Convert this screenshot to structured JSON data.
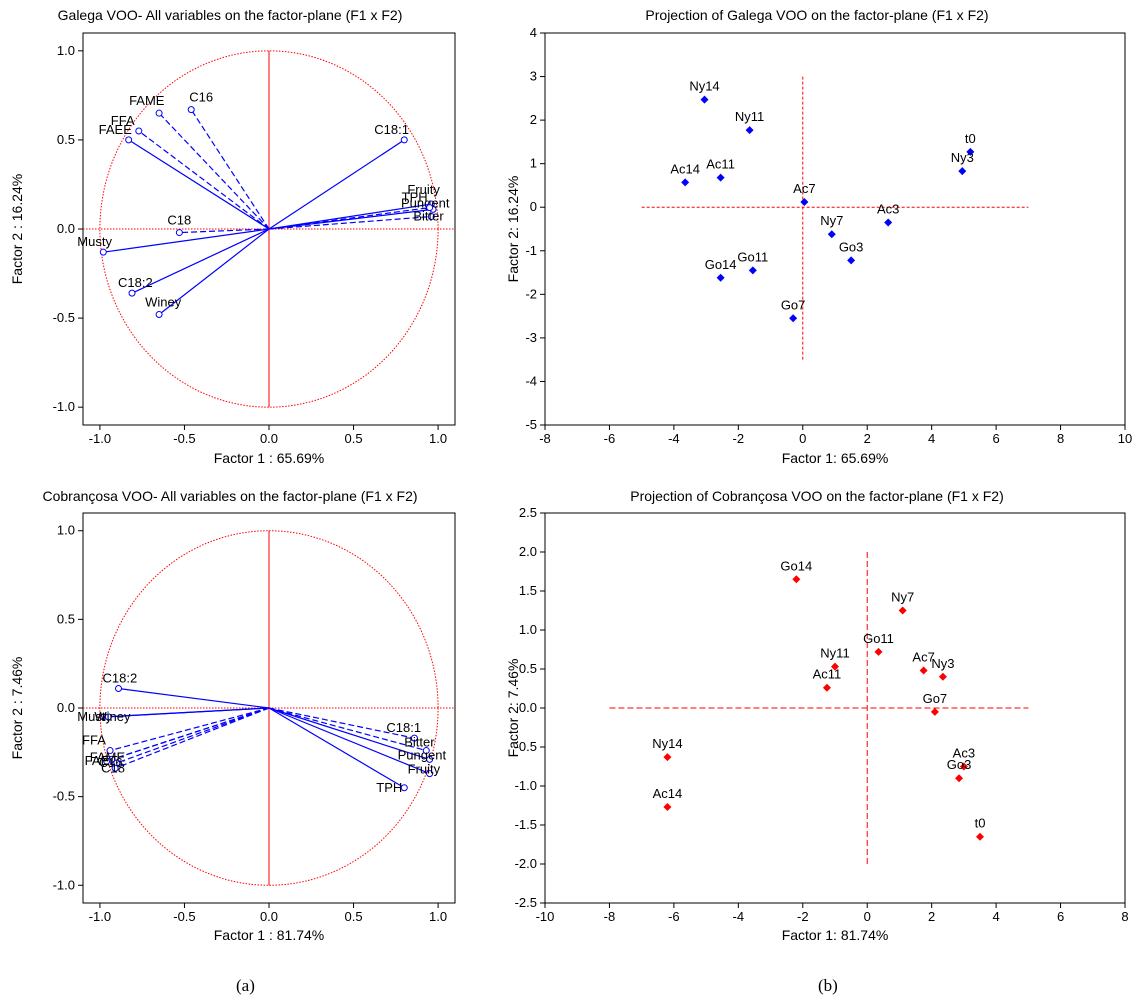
{
  "panel_labels": [
    "(a)",
    "(b)"
  ],
  "colors": {
    "blue": "#0000ff",
    "red": "#ff0000",
    "circle": "#ff0000",
    "axis": "#000000"
  },
  "chart_data": [
    {
      "type": "scatter",
      "subtype": "correlation-circle",
      "title": "Galega VOO- All variables on the factor-plane (F1 x F2)",
      "xlabel": "Factor 1 : 65.69%",
      "ylabel": "Factor 2 : 16.24%",
      "xlim": [
        -1.1,
        1.1
      ],
      "ylim": [
        -1.1,
        1.1
      ],
      "xticks": [
        "-1.0",
        "-0.5",
        "0.0",
        "0.5",
        "1.0"
      ],
      "yticks": [
        "-1.0",
        "-0.5",
        "0.0",
        "0.5",
        "1.0"
      ],
      "color": "#0000ff",
      "points": [
        {
          "label": "FAME",
          "x": -0.65,
          "y": 0.65,
          "dashed": true
        },
        {
          "label": "C16",
          "x": -0.46,
          "y": 0.67,
          "dashed": true
        },
        {
          "label": "FFA",
          "x": -0.77,
          "y": 0.55,
          "dashed": true
        },
        {
          "label": "FAEE",
          "x": -0.83,
          "y": 0.5,
          "dashed": false
        },
        {
          "label": "C18:1",
          "x": 0.8,
          "y": 0.5,
          "dashed": false
        },
        {
          "label": "C18",
          "x": -0.53,
          "y": -0.02,
          "dashed": true
        },
        {
          "label": "Musty",
          "x": -0.98,
          "y": -0.13,
          "dashed": false
        },
        {
          "label": "C18:2",
          "x": -0.81,
          "y": -0.36,
          "dashed": false
        },
        {
          "label": "Winey",
          "x": -0.65,
          "y": -0.48,
          "dashed": false
        },
        {
          "label": "Fruity",
          "x": 0.96,
          "y": 0.14,
          "dashed": false
        },
        {
          "label": "Pungent",
          "x": 0.97,
          "y": 0.11,
          "dashed": false
        },
        {
          "label": "TPH",
          "x": 0.95,
          "y": 0.12,
          "dashed": true
        },
        {
          "label": "Bitter",
          "x": 0.96,
          "y": 0.07,
          "dashed": true
        }
      ]
    },
    {
      "type": "scatter",
      "title": "Projection of Galega VOO on the factor-plane (F1 x F2)",
      "xlabel": "Factor 1: 65.69%",
      "ylabel": "Factor 2: 16.24%",
      "xlim": [
        -8,
        10
      ],
      "ylim": [
        -5,
        4
      ],
      "xticks": [
        "-8",
        "-6",
        "-4",
        "-2",
        "0",
        "2",
        "4",
        "6",
        "8",
        "10"
      ],
      "yticks": [
        "-5",
        "-4",
        "-3",
        "-2",
        "-1",
        "0",
        "1",
        "2",
        "3",
        "4"
      ],
      "color": "#0000ff",
      "cross": {
        "x": [
          -5,
          7
        ],
        "y": [
          -3.5,
          3
        ]
      },
      "points": [
        {
          "label": "Ny14",
          "x": -3.05,
          "y": 2.47
        },
        {
          "label": "Ny11",
          "x": -1.65,
          "y": 1.77
        },
        {
          "label": "t0",
          "x": 5.2,
          "y": 1.27
        },
        {
          "label": "Ny3",
          "x": 4.95,
          "y": 0.83
        },
        {
          "label": "Ac14",
          "x": -3.65,
          "y": 0.57
        },
        {
          "label": "Ac11",
          "x": -2.55,
          "y": 0.68
        },
        {
          "label": "Ac7",
          "x": 0.05,
          "y": 0.12
        },
        {
          "label": "Ac3",
          "x": 2.65,
          "y": -0.35
        },
        {
          "label": "Ny7",
          "x": 0.9,
          "y": -0.62
        },
        {
          "label": "Go3",
          "x": 1.5,
          "y": -1.22
        },
        {
          "label": "Go11",
          "x": -1.55,
          "y": -1.45
        },
        {
          "label": "Go14",
          "x": -2.55,
          "y": -1.62
        },
        {
          "label": "Go7",
          "x": -0.3,
          "y": -2.55
        }
      ]
    },
    {
      "type": "scatter",
      "subtype": "correlation-circle",
      "title": "Cobrançosa VOO- All variables on the factor-plane (F1 x F2)",
      "xlabel": "Factor 1 : 81.74%",
      "ylabel": "Factor 2 : 7.46%",
      "xlim": [
        -1.1,
        1.1
      ],
      "ylim": [
        -1.1,
        1.1
      ],
      "xticks": [
        "-1.0",
        "-0.5",
        "0.0",
        "0.5",
        "1.0"
      ],
      "yticks": [
        "-1.0",
        "-0.5",
        "0.0",
        "0.5",
        "1.0"
      ],
      "color": "#0000ff",
      "points": [
        {
          "label": "C18:2",
          "x": -0.89,
          "y": 0.11,
          "dashed": false
        },
        {
          "label": "Musty",
          "x": -0.98,
          "y": -0.05,
          "dashed": false
        },
        {
          "label": "Winey",
          "x": -0.95,
          "y": -0.05,
          "dashed": false
        },
        {
          "label": "FFA",
          "x": -0.94,
          "y": -0.24,
          "dashed": true
        },
        {
          "label": "FAEE",
          "x": -0.96,
          "y": -0.3,
          "dashed": true
        },
        {
          "label": "FAME",
          "x": -0.93,
          "y": -0.29,
          "dashed": true
        },
        {
          "label": "C16",
          "x": -0.9,
          "y": -0.31,
          "dashed": true
        },
        {
          "label": "C18",
          "x": -0.91,
          "y": -0.34,
          "dashed": true
        },
        {
          "label": "C18:1",
          "x": 0.86,
          "y": -0.17,
          "dashed": true
        },
        {
          "label": "Bitter",
          "x": 0.93,
          "y": -0.24,
          "dashed": true
        },
        {
          "label": "Pungent",
          "x": 0.95,
          "y": -0.29,
          "dashed": false
        },
        {
          "label": "Fruity",
          "x": 0.95,
          "y": -0.37,
          "dashed": false
        },
        {
          "label": "TPH",
          "x": 0.8,
          "y": -0.45,
          "dashed": false
        }
      ]
    },
    {
      "type": "scatter",
      "title": "Projection of Cobrançosa VOO on the factor-plane (F1 x F2)",
      "xlabel": "Factor 1: 81.74%",
      "ylabel": "Factor 2: 7.46%",
      "xlim": [
        -10,
        8
      ],
      "ylim": [
        -2.5,
        2.5
      ],
      "xticks": [
        "-10",
        "-8",
        "-6",
        "-4",
        "-2",
        "0",
        "2",
        "4",
        "6",
        "8"
      ],
      "yticks": [
        "-2.5",
        "-2.0",
        "-1.5",
        "-1.0",
        "-0.5",
        "0.0",
        "0.5",
        "1.0",
        "1.5",
        "2.0",
        "2.5"
      ],
      "color": "#ff0000",
      "cross": {
        "x": [
          -8,
          5
        ],
        "y": [
          -2,
          2
        ]
      },
      "points": [
        {
          "label": "Go14",
          "x": -2.2,
          "y": 1.65
        },
        {
          "label": "Ny7",
          "x": 1.1,
          "y": 1.25
        },
        {
          "label": "Go11",
          "x": 0.35,
          "y": 0.72
        },
        {
          "label": "Ny11",
          "x": -1.0,
          "y": 0.53
        },
        {
          "label": "Ac7",
          "x": 1.75,
          "y": 0.48
        },
        {
          "label": "Ny3",
          "x": 2.35,
          "y": 0.4
        },
        {
          "label": "Ac11",
          "x": -1.25,
          "y": 0.26
        },
        {
          "label": "Go7",
          "x": 2.1,
          "y": -0.05
        },
        {
          "label": "Ny14",
          "x": -6.2,
          "y": -0.63
        },
        {
          "label": "Ac3",
          "x": 3.0,
          "y": -0.75
        },
        {
          "label": "Go3",
          "x": 2.85,
          "y": -0.9
        },
        {
          "label": "Ac14",
          "x": -6.2,
          "y": -1.27
        },
        {
          "label": "t0",
          "x": 3.5,
          "y": -1.65
        }
      ]
    }
  ]
}
